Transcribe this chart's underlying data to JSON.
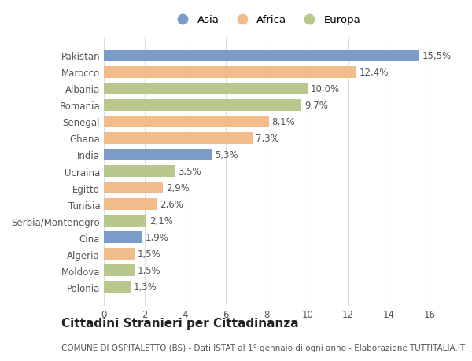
{
  "categories": [
    "Pakistan",
    "Marocco",
    "Albania",
    "Romania",
    "Senegal",
    "Ghana",
    "India",
    "Ucraina",
    "Egitto",
    "Tunisia",
    "Serbia/Montenegro",
    "Cina",
    "Algeria",
    "Moldova",
    "Polonia"
  ],
  "values": [
    15.5,
    12.4,
    10.0,
    9.7,
    8.1,
    7.3,
    5.3,
    3.5,
    2.9,
    2.6,
    2.1,
    1.9,
    1.5,
    1.5,
    1.3
  ],
  "continents": [
    "Asia",
    "Africa",
    "Europa",
    "Europa",
    "Africa",
    "Africa",
    "Asia",
    "Europa",
    "Africa",
    "Africa",
    "Europa",
    "Asia",
    "Africa",
    "Europa",
    "Europa"
  ],
  "labels": [
    "15,5%",
    "12,4%",
    "10,0%",
    "9,7%",
    "8,1%",
    "7,3%",
    "5,3%",
    "3,5%",
    "2,9%",
    "2,6%",
    "2,1%",
    "1,9%",
    "1,5%",
    "1,5%",
    "1,3%"
  ],
  "colors": {
    "Asia": "#7b9cc8",
    "Africa": "#f0bc8c",
    "Europa": "#b8c88c"
  },
  "legend_labels": [
    "Asia",
    "Africa",
    "Europa"
  ],
  "xlim": [
    0,
    16
  ],
  "xticks": [
    0,
    2,
    4,
    6,
    8,
    10,
    12,
    14,
    16
  ],
  "title": "Cittadini Stranieri per Cittadinanza",
  "subtitle": "COMUNE DI OSPITALETTO (BS) - Dati ISTAT al 1° gennaio di ogni anno - Elaborazione TUTTITALIA.IT",
  "plot_bg": "#ffffff",
  "fig_bg": "#ffffff",
  "bar_height": 0.72,
  "label_fontsize": 8.5,
  "tick_fontsize": 8.5,
  "title_fontsize": 11,
  "subtitle_fontsize": 7.5,
  "legend_fontsize": 9.5
}
